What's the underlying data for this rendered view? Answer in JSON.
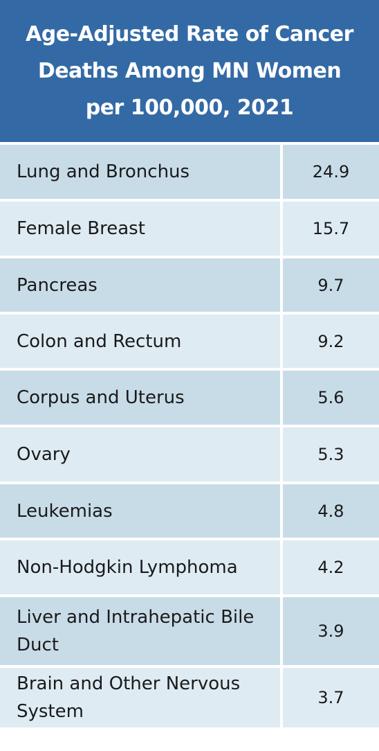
{
  "title": "Age-Adjusted Rate of Cancer\nDeaths Among MN Women\nper 100,000, 2021",
  "colors": {
    "header_bg": "#336aa5",
    "row_dark": "#c8dce8",
    "row_light": "#deebf3"
  },
  "chart_data": {
    "type": "table",
    "title": "Age-Adjusted Rate of Cancer Deaths Among MN Women per 100,000, 2021",
    "categories": [
      "Lung and Bronchus",
      "Female Breast",
      "Pancreas",
      "Colon and Rectum",
      "Corpus and Uterus",
      "Ovary",
      "Leukemias",
      "Non-Hodgkin Lymphoma",
      "Liver and Intrahepatic Bile Duct",
      "Brain and Other Nervous System"
    ],
    "values": [
      "24.9",
      "15.7",
      "9.7",
      "9.2",
      "5.6",
      "5.3",
      "4.8",
      "4.2",
      "3.9",
      "3.7"
    ]
  }
}
